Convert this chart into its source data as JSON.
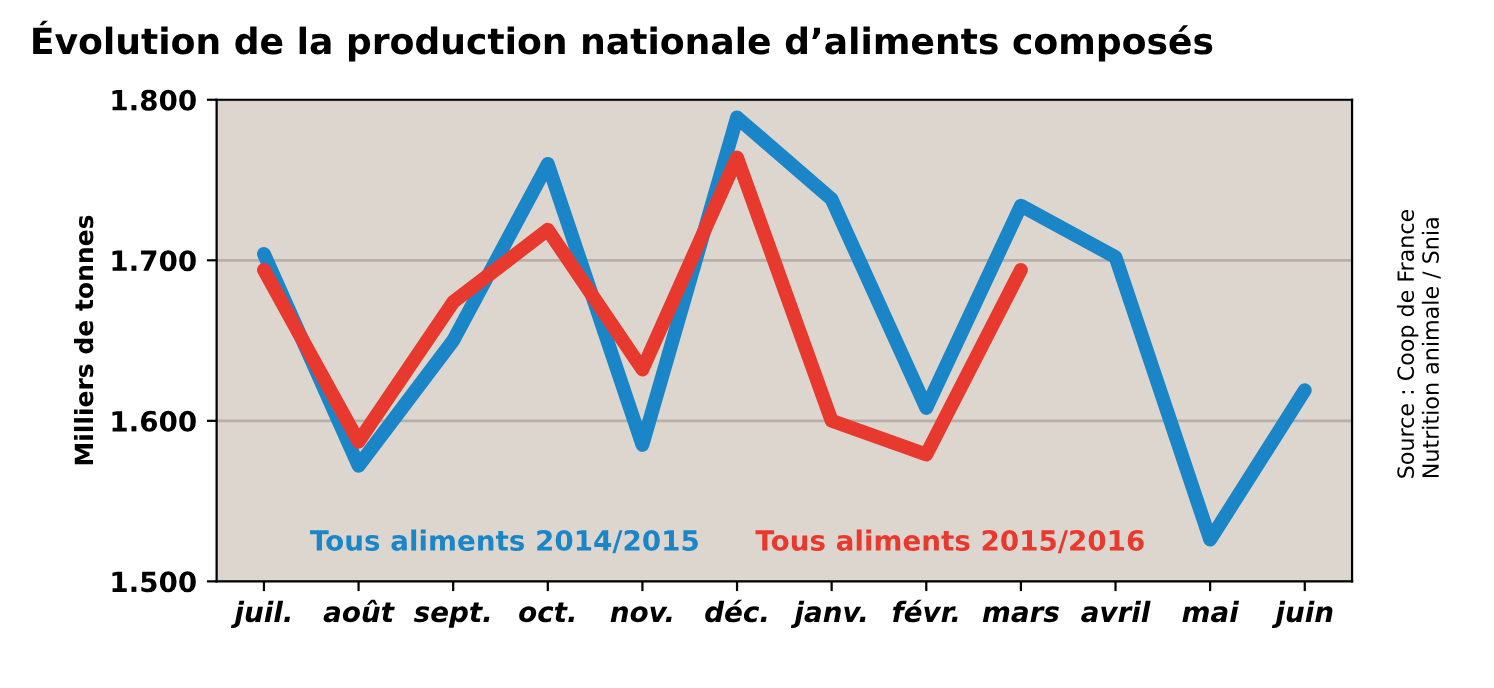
{
  "chart_data": {
    "type": "line",
    "title": "Évolution de la production nationale d’aliments composés",
    "ylabel": "Milliers de tonnes",
    "categories": [
      "juil.",
      "août",
      "sept.",
      "oct.",
      "nov.",
      "déc.",
      "janv.",
      "févr.",
      "mars",
      "avril",
      "mai",
      "juin"
    ],
    "series": [
      {
        "name": "Tous aliments 2014/2015",
        "color": "#1a86c8",
        "values": [
          1704,
          1572,
          1650,
          1760,
          1585,
          1789,
          1738,
          1608,
          1734,
          1702,
          1526,
          1619
        ]
      },
      {
        "name": "Tous aliments 2015/2016",
        "color": "#e8392e",
        "values": [
          1694,
          1587,
          1674,
          1719,
          1632,
          1764,
          1600,
          1579,
          1694,
          null,
          null,
          null
        ]
      }
    ],
    "ylim": [
      1500,
      1800
    ],
    "yticks": [
      {
        "value": 1500,
        "label": "1.500"
      },
      {
        "value": 1600,
        "label": "1.600"
      },
      {
        "value": 1700,
        "label": "1.700"
      },
      {
        "value": 1800,
        "label": "1.800"
      }
    ],
    "grid": "y",
    "legend": "bottom",
    "marker": "none",
    "line_style": "solid",
    "annotations": [
      "Source : Coop de France\nNutrition animale / Snia"
    ]
  }
}
